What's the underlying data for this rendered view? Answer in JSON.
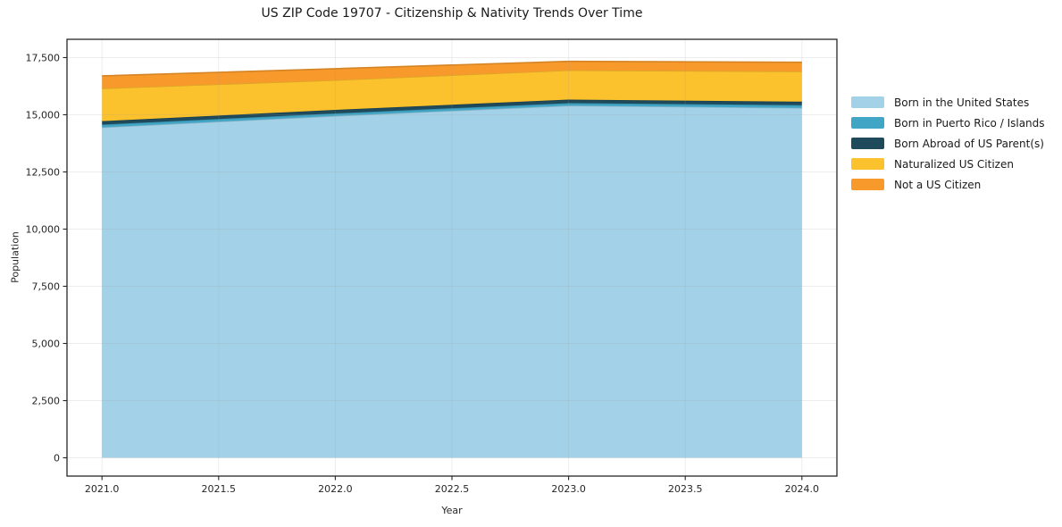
{
  "chart_data": {
    "type": "area",
    "stacked": true,
    "title": "US ZIP Code 19707 - Citizenship & Nativity Trends Over Time",
    "xlabel": "Year",
    "ylabel": "Population",
    "x": [
      2021,
      2022,
      2023,
      2024
    ],
    "series": [
      {
        "name": "Born in the United States",
        "color": "#A3D2E8",
        "values": [
          14450,
          14950,
          15400,
          15300
        ]
      },
      {
        "name": "Born in Puerto Rico / Islands",
        "color": "#41A6C6",
        "values": [
          120,
          110,
          110,
          120
        ]
      },
      {
        "name": "Born Abroad of US Parent(s)",
        "color": "#1E4A5C",
        "values": [
          150,
          155,
          155,
          155
        ]
      },
      {
        "name": "Naturalized US Citizen",
        "color": "#FCC22D",
        "values": [
          1430,
          1300,
          1280,
          1320
        ]
      },
      {
        "name": "Not a US Citizen",
        "color": "#F8992B",
        "values": [
          550,
          500,
          390,
          400
        ]
      }
    ],
    "xticks": [
      2021.0,
      2021.5,
      2022.0,
      2022.5,
      2023.0,
      2023.5,
      2024.0
    ],
    "yticks": [
      0,
      2500,
      5000,
      7500,
      10000,
      12500,
      15000,
      17500
    ],
    "xlim": [
      2020.85,
      2024.15
    ],
    "ylim": [
      -800,
      18300
    ],
    "grid": true,
    "legend_position": "outside-right",
    "background": "#ffffff",
    "spine_color": "#262626",
    "grid_color": "#999999"
  }
}
